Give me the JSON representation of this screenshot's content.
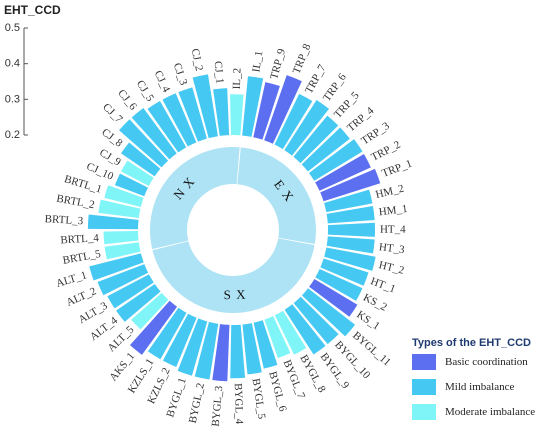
{
  "chart_data": {
    "type": "bar",
    "ylabel": "EHT_CCD",
    "ylim": [
      0.2,
      0.5
    ],
    "yticks": [
      "0.2",
      "0.3",
      "0.4",
      "0.5"
    ],
    "categories": [
      "IL_1",
      "TRP_9",
      "TRP_8",
      "TRP_7",
      "TRP_6",
      "TRP_5",
      "TRP_4",
      "TRP_3",
      "TRP_2",
      "TRP_1",
      "HM_2",
      "HM_1",
      "HT_4",
      "HT_3",
      "HT_2",
      "HT_1",
      "KS_2",
      "KS_1",
      "BYGL_11",
      "BYGL_10",
      "BYGL_9",
      "BYGL_8",
      "BYGL_7",
      "BYGL_6",
      "BYGL_5",
      "BYGL_4",
      "BYGL_3",
      "BYGL_2",
      "BYGL_1",
      "KZLS_2",
      "KZLS_1",
      "AKS_1",
      "ALT_5",
      "ALT_4",
      "ALT_3",
      "ALT_2",
      "ALT_1",
      "BRTL_5",
      "BRTL_4",
      "BRTL_3",
      "BRTL_2",
      "BRTL_1",
      "CJ_10",
      "CJ_9",
      "CJ_8",
      "CJ_7",
      "CJ_6",
      "CJ_5",
      "CJ_4",
      "CJ_3",
      "CJ_2",
      "CJ_1",
      "IL_2"
    ],
    "values": [
      0.39,
      0.38,
      0.42,
      0.38,
      0.39,
      0.37,
      0.37,
      0.38,
      0.38,
      0.39,
      0.35,
      0.35,
      0.35,
      0.35,
      0.36,
      0.35,
      0.35,
      0.36,
      0.39,
      0.37,
      0.37,
      0.34,
      0.33,
      0.35,
      0.36,
      0.37,
      0.38,
      0.38,
      0.38,
      0.37,
      0.37,
      0.39,
      0.33,
      0.35,
      0.35,
      0.36,
      0.37,
      0.31,
      0.31,
      0.36,
      0.33,
      0.32,
      0.3,
      0.3,
      0.33,
      0.38,
      0.38,
      0.37,
      0.37,
      0.37,
      0.4,
      0.35,
      0.33
    ],
    "class": [
      "Mild imbalance",
      "Basic coordination",
      "Basic coordination",
      "Mild imbalance",
      "Mild imbalance",
      "Mild imbalance",
      "Mild imbalance",
      "Mild imbalance",
      "Basic coordination",
      "Basic coordination",
      "Mild imbalance",
      "Mild imbalance",
      "Mild imbalance",
      "Mild imbalance",
      "Mild imbalance",
      "Mild imbalance",
      "Mild imbalance",
      "Basic coordination",
      "Mild imbalance",
      "Mild imbalance",
      "Mild imbalance",
      "Moderate imbalance",
      "Moderate imbalance",
      "Mild imbalance",
      "Mild imbalance",
      "Mild imbalance",
      "Basic coordination",
      "Mild imbalance",
      "Mild imbalance",
      "Mild imbalance",
      "Mild imbalance",
      "Basic coordination",
      "Moderate imbalance",
      "Mild imbalance",
      "Mild imbalance",
      "Mild imbalance",
      "Mild imbalance",
      "Moderate imbalance",
      "Moderate imbalance",
      "Mild imbalance",
      "Moderate imbalance",
      "Moderate imbalance",
      "Mild imbalance",
      "Moderate imbalance",
      "Mild imbalance",
      "Mild imbalance",
      "Mild imbalance",
      "Mild imbalance",
      "Mild imbalance",
      "Mild imbalance",
      "Mild imbalance",
      "Mild imbalance",
      "Moderate imbalance"
    ],
    "regions": [
      {
        "name": "E X",
        "categories": [
          "IL_1",
          "TRP_9",
          "TRP_8",
          "TRP_7",
          "TRP_6",
          "TRP_5",
          "TRP_4",
          "TRP_3",
          "TRP_2",
          "TRP_1",
          "HM_2",
          "HM_1",
          "HT_4",
          "HT_3"
        ]
      },
      {
        "name": "S X",
        "categories": [
          "HT_2",
          "HT_1",
          "KS_2",
          "KS_1",
          "BYGL_11",
          "BYGL_10",
          "BYGL_9",
          "BYGL_8",
          "BYGL_7",
          "BYGL_6",
          "BYGL_5",
          "BYGL_4",
          "BYGL_3",
          "BYGL_2",
          "BYGL_1",
          "KZLS_2",
          "KZLS_1",
          "AKS_1",
          "ALT_5",
          "ALT_4",
          "ALT_3",
          "ALT_2",
          "ALT_1"
        ]
      },
      {
        "name": "N X",
        "categories": [
          "BRTL_5",
          "BRTL_4",
          "BRTL_3",
          "BRTL_2",
          "BRTL_1",
          "CJ_10",
          "CJ_9",
          "CJ_8",
          "CJ_7",
          "CJ_6",
          "CJ_5",
          "CJ_4",
          "CJ_3",
          "CJ_2",
          "CJ_1",
          "IL_2"
        ]
      }
    ],
    "legend": {
      "title": "Types of the EHT_CCD",
      "placement": "bottom-right",
      "items": [
        {
          "label": "Basic coordination",
          "color": "#5b6ff0"
        },
        {
          "label": "Mild imbalance",
          "color": "#45c8f2"
        },
        {
          "label": "Moderate imbalance",
          "color": "#7ff5f8"
        }
      ]
    },
    "ring_color": "#aee3f5"
  }
}
